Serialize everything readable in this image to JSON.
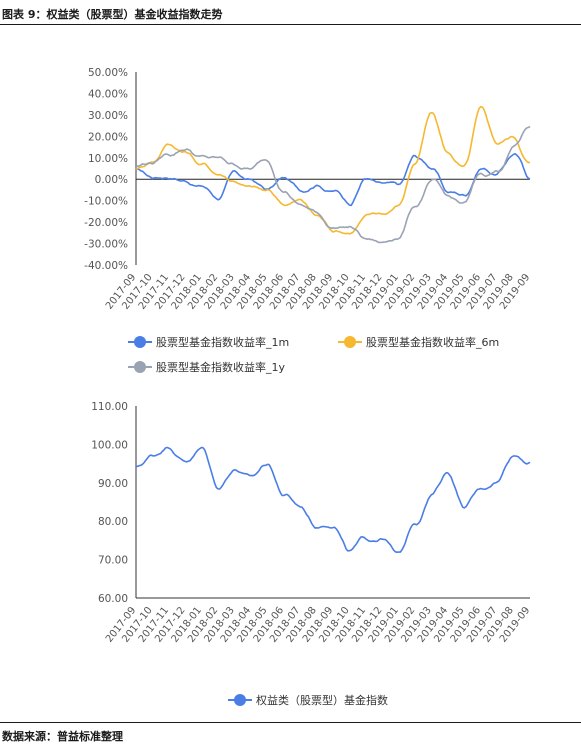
{
  "header": {
    "title": "图表 9：权益类（股票型）基金收益指数走势"
  },
  "footer": {
    "source": "数据来源：普益标准整理"
  },
  "chart_data": [
    {
      "type": "line",
      "x": [
        "2017-09",
        "2017-10",
        "2017-11",
        "2017-12",
        "2018-01",
        "2018-02",
        "2018-03",
        "2018-04",
        "2018-05",
        "2018-06",
        "2018-07",
        "2018-08",
        "2018-09",
        "2018-10",
        "2018-11",
        "2018-12",
        "2019-01",
        "2019-02",
        "2019-03",
        "2019-04",
        "2019-05",
        "2019-06",
        "2019-07",
        "2019-08",
        "2019-09"
      ],
      "ylim": [
        -40,
        50
      ],
      "yticks": [
        "50.00%",
        "40.00%",
        "30.00%",
        "20.00%",
        "10.00%",
        "0.00%",
        "-10.00%",
        "-20.00%",
        "-30.00%",
        "-40.00%"
      ],
      "ytick_values": [
        50,
        40,
        30,
        20,
        10,
        0,
        -10,
        -20,
        -30,
        -40
      ],
      "legend_position": "bottom",
      "series": [
        {
          "name": "股票型基金指数收益率_1m",
          "color": "#4a7ee6",
          "values": [
            4,
            1,
            2,
            0,
            -3,
            -8,
            2,
            -1,
            -5,
            0,
            -5,
            -1,
            -5,
            -10,
            1,
            -3,
            -4,
            10,
            6,
            -6,
            -7,
            6,
            3,
            12,
            1
          ]
        },
        {
          "name": "股票型基金指数收益率_6m",
          "color": "#f5b82e",
          "values": [
            5,
            9,
            17,
            13,
            7,
            3,
            0,
            -4,
            -6,
            -11,
            -10,
            -17,
            -23,
            -24,
            -18,
            -16,
            -12,
            8,
            30,
            12,
            5,
            31,
            17,
            20,
            8
          ]
        },
        {
          "name": "股票型基金指数收益率_1y",
          "color": "#9aa3b3",
          "values": [
            6,
            8,
            12,
            15,
            10,
            9,
            7,
            5,
            9,
            -4,
            -12,
            -16,
            -22,
            -22,
            -28,
            -30,
            -26,
            -12,
            -2,
            -9,
            -12,
            2,
            4,
            15,
            25
          ]
        }
      ]
    },
    {
      "type": "line",
      "x": [
        "2017-09",
        "2017-10",
        "2017-11",
        "2017-12",
        "2018-01",
        "2018-02",
        "2018-03",
        "2018-04",
        "2018-05",
        "2018-06",
        "2018-07",
        "2018-08",
        "2018-09",
        "2018-10",
        "2018-11",
        "2018-12",
        "2019-01",
        "2019-02",
        "2019-03",
        "2019-04",
        "2019-05",
        "2019-06",
        "2019-07",
        "2019-08",
        "2019-09"
      ],
      "ylim": [
        60,
        110
      ],
      "yticks": [
        "110.00",
        "100.00",
        "90.00",
        "80.00",
        "70.00",
        "60.00"
      ],
      "ytick_values": [
        110,
        100,
        90,
        80,
        70,
        60
      ],
      "legend_position": "bottom",
      "series": [
        {
          "name": "权益类（股票型）基金指数",
          "color": "#4a7ee6",
          "values": [
            94,
            97,
            100,
            96,
            99,
            89,
            94,
            91,
            95,
            87,
            84,
            79,
            80,
            72,
            75,
            76,
            71,
            80,
            87,
            93,
            84,
            88,
            91,
            98,
            96
          ]
        }
      ]
    }
  ]
}
